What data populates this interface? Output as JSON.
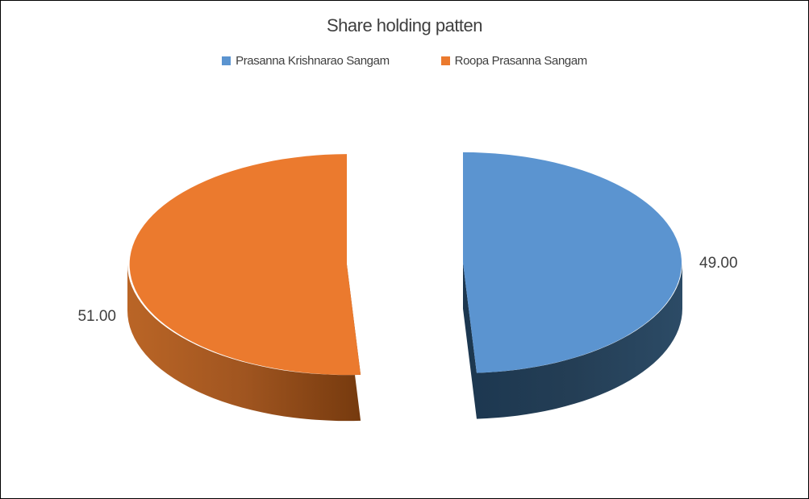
{
  "page": {
    "background": "#ffffff",
    "border_color": "#000000",
    "text_color": "#3f3f3f"
  },
  "chart_data": {
    "type": "pie",
    "style": "3d-exploded",
    "title": "Share holding patten",
    "legend_position": "top",
    "start_angle_deg": 0,
    "direction": "clockwise",
    "categories": [
      "Prasanna Krishnarao Sangam",
      "Roopa Prasanna Sangam"
    ],
    "series": [
      {
        "name": "Prasanna Krishnarao Sangam",
        "value": 49,
        "data_label": "49.00",
        "color": "#5B94D0",
        "side_gradient": [
          "#1C3750",
          "#243E55",
          "#2C4B66"
        ]
      },
      {
        "name": "Roopa Prasanna Sangam",
        "value": 51,
        "data_label": "51.00",
        "color": "#EB7A2E",
        "side_gradient": [
          "#BA6526",
          "#A05520",
          "#763A0E"
        ]
      }
    ]
  }
}
